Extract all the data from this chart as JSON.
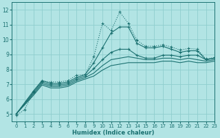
{
  "xlabel": "Humidex (Indice chaleur)",
  "background_color": "#b2e4e4",
  "grid_color": "#8fcece",
  "line_color": "#1a7070",
  "xlim": [
    -0.5,
    23
  ],
  "ylim": [
    4.5,
    12.5
  ],
  "xticks": [
    0,
    1,
    2,
    3,
    4,
    5,
    6,
    7,
    8,
    9,
    10,
    11,
    12,
    13,
    14,
    15,
    16,
    17,
    18,
    19,
    20,
    21,
    22,
    23
  ],
  "yticks": [
    5,
    6,
    7,
    8,
    9,
    10,
    11,
    12
  ],
  "lines": [
    {
      "x": [
        0,
        1,
        2,
        3,
        4,
        5,
        6,
        7,
        8,
        9,
        10,
        11,
        12,
        13,
        14,
        15,
        16,
        17,
        18,
        19,
        20,
        21,
        22,
        23
      ],
      "y": [
        4.9,
        5.3,
        6.5,
        7.2,
        7.15,
        7.15,
        7.25,
        7.6,
        7.65,
        8.85,
        11.1,
        10.6,
        11.85,
        11.1,
        9.95,
        9.55,
        9.55,
        9.65,
        9.5,
        9.3,
        9.4,
        9.35,
        8.7,
        8.8
      ],
      "style": "dotted",
      "marker": "+",
      "markersize": 3.5,
      "linewidth": 0.8
    },
    {
      "x": [
        0,
        2,
        3,
        4,
        5,
        6,
        7,
        8,
        9,
        10,
        11,
        12,
        13,
        14,
        15,
        16,
        17,
        18,
        19,
        20,
        21,
        22,
        23
      ],
      "y": [
        5.0,
        6.55,
        7.25,
        7.05,
        7.05,
        7.15,
        7.45,
        7.65,
        8.45,
        9.45,
        10.45,
        10.85,
        10.85,
        9.75,
        9.45,
        9.45,
        9.55,
        9.35,
        9.15,
        9.25,
        9.25,
        8.65,
        8.75
      ],
      "style": "solid",
      "marker": "+",
      "markersize": 3.5,
      "linewidth": 0.8
    },
    {
      "x": [
        0,
        2,
        3,
        4,
        5,
        6,
        7,
        8,
        9,
        10,
        11,
        12,
        13,
        14,
        15,
        16,
        17,
        18,
        19,
        20,
        21,
        22,
        23
      ],
      "y": [
        5.0,
        6.45,
        7.15,
        6.95,
        6.95,
        7.05,
        7.35,
        7.55,
        8.05,
        8.65,
        9.15,
        9.35,
        9.35,
        8.95,
        8.75,
        8.75,
        8.95,
        8.95,
        8.85,
        8.95,
        8.95,
        8.65,
        8.75
      ],
      "style": "solid",
      "marker": "+",
      "markersize": 3.5,
      "linewidth": 0.8
    },
    {
      "x": [
        0,
        2,
        3,
        4,
        5,
        6,
        7,
        8,
        9,
        10,
        11,
        12,
        13,
        14,
        15,
        16,
        17,
        18,
        19,
        20,
        21,
        22,
        23
      ],
      "y": [
        5.0,
        6.35,
        7.05,
        6.85,
        6.85,
        6.95,
        7.25,
        7.45,
        7.75,
        8.25,
        8.65,
        8.75,
        8.85,
        8.75,
        8.65,
        8.65,
        8.75,
        8.75,
        8.65,
        8.75,
        8.65,
        8.55,
        8.65
      ],
      "style": "solid",
      "marker": null,
      "markersize": 0,
      "linewidth": 0.8
    },
    {
      "x": [
        0,
        2,
        3,
        4,
        5,
        6,
        7,
        8,
        9,
        10,
        11,
        12,
        13,
        14,
        15,
        16,
        17,
        18,
        19,
        20,
        21,
        22,
        23
      ],
      "y": [
        5.0,
        6.25,
        6.95,
        6.75,
        6.75,
        6.85,
        7.15,
        7.35,
        7.55,
        7.95,
        8.25,
        8.35,
        8.45,
        8.45,
        8.45,
        8.45,
        8.55,
        8.55,
        8.45,
        8.55,
        8.45,
        8.45,
        8.55
      ],
      "style": "solid",
      "marker": null,
      "markersize": 0,
      "linewidth": 0.8
    }
  ]
}
